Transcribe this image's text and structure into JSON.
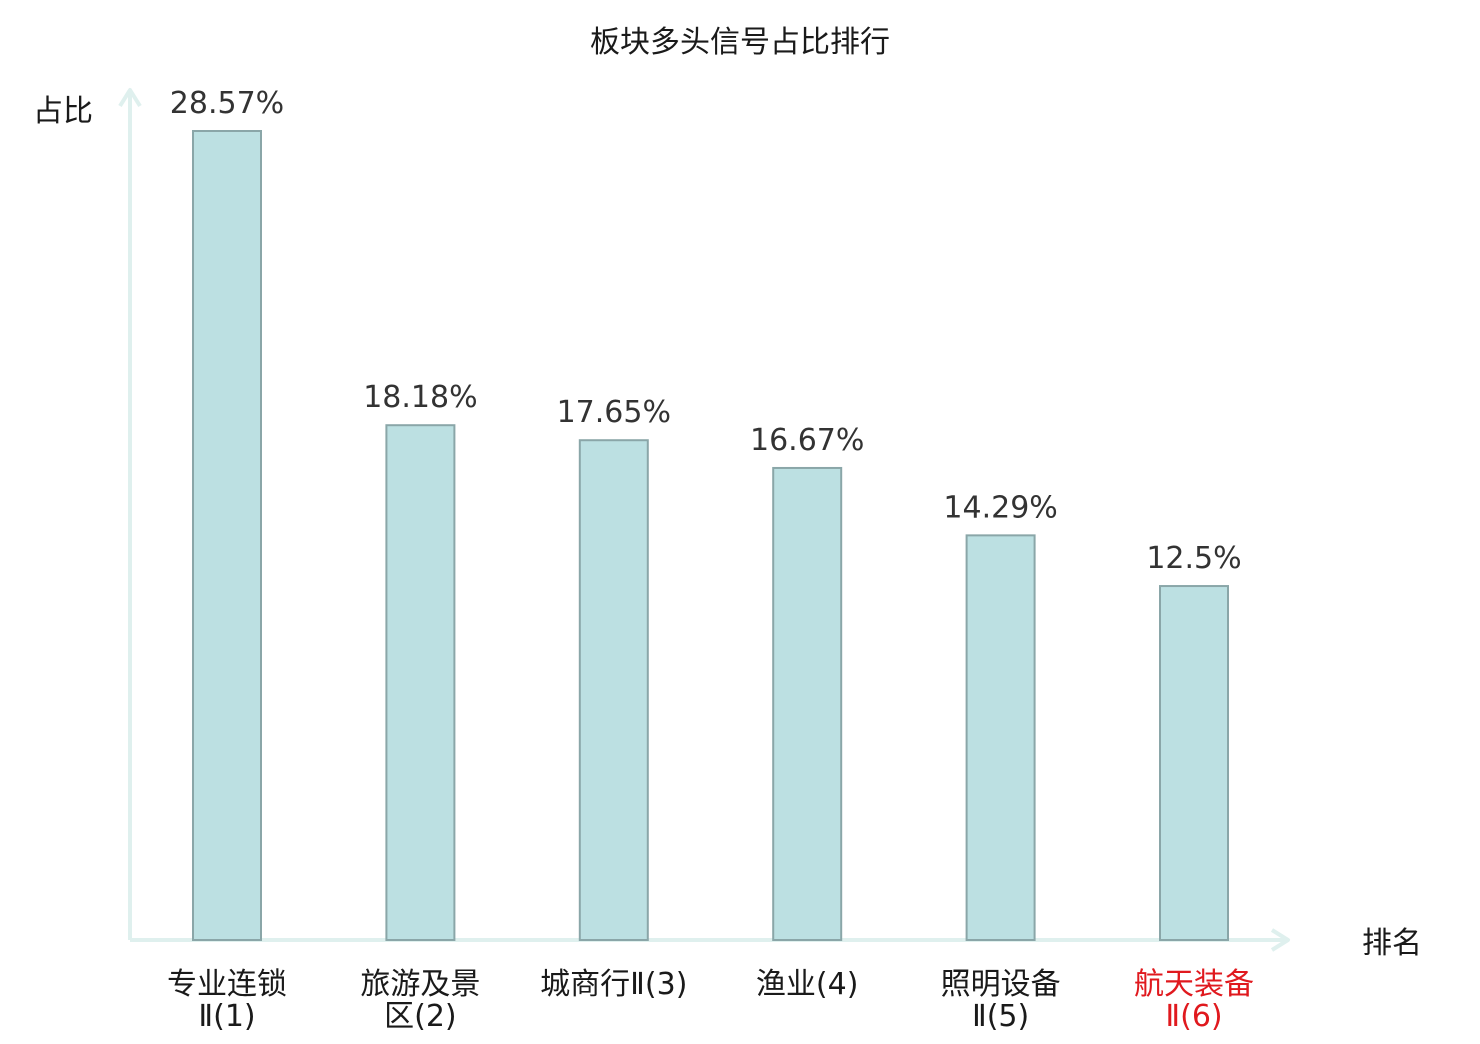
{
  "chart_data": {
    "type": "bar",
    "title": "板块多头信号占比排行",
    "ylabel": "占比",
    "xlabel": "排名",
    "categories": [
      {
        "line1": "专业连锁",
        "line2": "Ⅱ(1)",
        "highlight": false
      },
      {
        "line1": "旅游及景",
        "line2": "区(2)",
        "highlight": false
      },
      {
        "line1": "城商行Ⅱ(3)",
        "line2": "",
        "highlight": false
      },
      {
        "line1": "渔业(4)",
        "line2": "",
        "highlight": false
      },
      {
        "line1": "照明设备",
        "line2": "Ⅱ(5)",
        "highlight": false
      },
      {
        "line1": "航天装备",
        "line2": "Ⅱ(6)",
        "highlight": true
      }
    ],
    "values": [
      28.57,
      18.18,
      17.65,
      16.67,
      14.29,
      12.5
    ],
    "value_labels": [
      "28.57%",
      "18.18%",
      "17.65%",
      "16.67%",
      "14.29%",
      "12.5%"
    ],
    "ylim": [
      0,
      28.57
    ],
    "grid": false,
    "legend": "none"
  },
  "colors": {
    "bar_fill": "#bce0e2",
    "bar_stroke": "#8aa6a8",
    "axis": "#dff0ee",
    "label_text": "#333333",
    "highlight_text": "#e0191e",
    "category_text": "#1a1a1a"
  }
}
